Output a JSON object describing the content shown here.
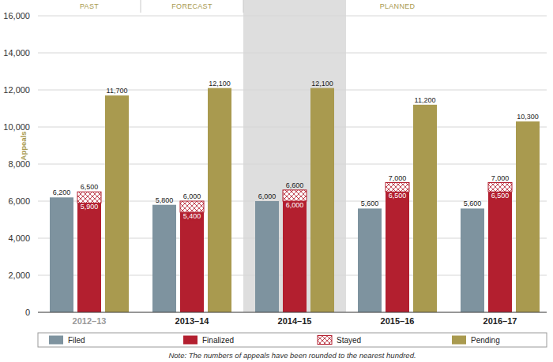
{
  "chart_data": {
    "type": "bar",
    "categories": [
      "2012–13",
      "2013–14",
      "2014–15",
      "2015–16",
      "2016–17"
    ],
    "periods": [
      {
        "label": "PAST",
        "categories": [
          "2012–13"
        ]
      },
      {
        "label": "FORECAST",
        "categories": [
          "2013–14"
        ]
      },
      {
        "label": "PLANNED",
        "categories": [
          "2014–15",
          "2015–16",
          "2016–17"
        ]
      }
    ],
    "shaded_categories": [
      "2014–15"
    ],
    "y_label": "Appeals",
    "series": [
      {
        "name": "Filed",
        "color": "#7e939f",
        "values": [
          6200,
          5800,
          6000,
          5600,
          5600
        ],
        "value_labels": [
          "6,200",
          "5,800",
          "6,000",
          "5,600",
          "5,600"
        ]
      },
      {
        "name": "Finalized",
        "color": "#b31f2f",
        "values": [
          5900,
          5400,
          6000,
          6500,
          6500
        ],
        "value_labels": [
          "5,900",
          "5,400",
          "6,000",
          "6,500",
          "6,500"
        ]
      },
      {
        "name": "Stayed",
        "color": "#b31f2f",
        "marker": "crosshatch",
        "stacked": true,
        "values": [
          600,
          600,
          600,
          500,
          500
        ],
        "totals": [
          6500,
          6000,
          6600,
          7000,
          7000
        ],
        "total_labels": [
          "6,500",
          "6,000",
          "6,600",
          "7,000",
          "7,000"
        ]
      },
      {
        "name": "Pending",
        "color": "#a99a4f",
        "values": [
          11700,
          12100,
          12100,
          11200,
          10300
        ],
        "value_labels": [
          "11,700",
          "12,100",
          "12,100",
          "11,200",
          "10,300"
        ]
      }
    ],
    "ylim": [
      0,
      16000
    ],
    "yticks": [
      0,
      {
        "value": 2000,
        "label": "2,000"
      },
      {
        "value": 4000,
        "label": "4,000"
      },
      {
        "value": 6000,
        "label": "6,000"
      },
      {
        "value": 8000,
        "label": "8,000"
      },
      {
        "value": 10000,
        "label": "10,000"
      },
      {
        "value": 12000,
        "label": "12,000"
      },
      {
        "value": 14000,
        "label": "14,000"
      },
      {
        "value": 16000,
        "label": "16,000"
      }
    ],
    "grid": true,
    "legend": "bottom",
    "data_labels": true,
    "note": "Note: The numbers of appeals have been rounded to the nearest hundred."
  }
}
